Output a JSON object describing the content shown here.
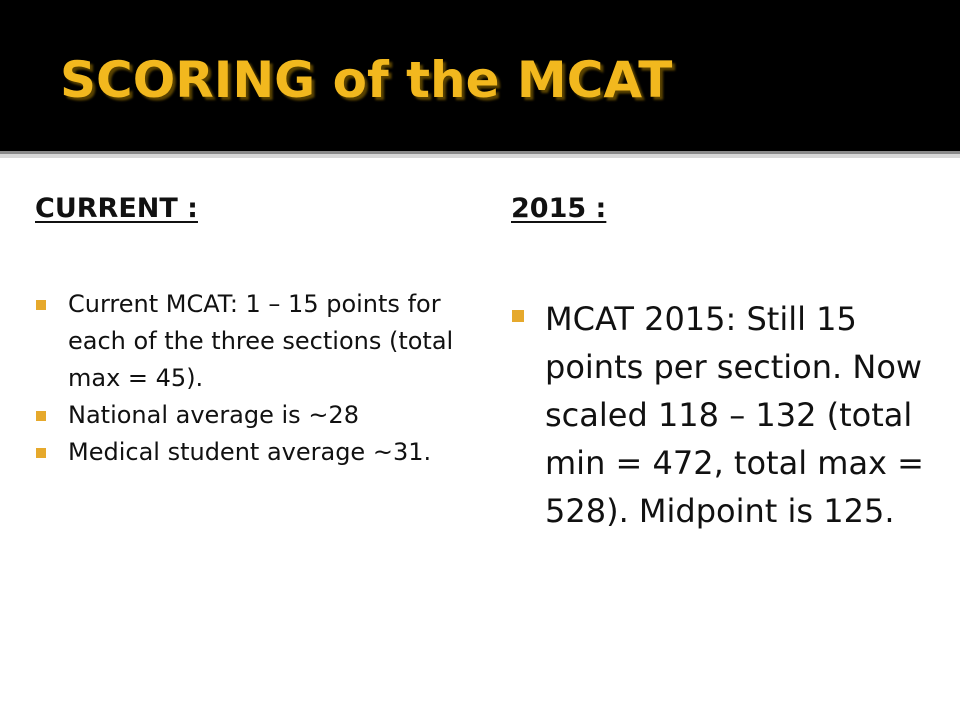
{
  "slide": {
    "title": "SCORING of the MCAT",
    "left": {
      "heading": "CURRENT :",
      "bullets": [
        "Current MCAT:  1 – 15 points for each of the three sections (total max = 45).",
        "National average is ~28",
        "Medical student average ~31."
      ]
    },
    "right": {
      "heading": "2015 :",
      "bullets": [
        "MCAT 2015:  Still 15 points per section.  Now scaled 118 – 132 (total min = 472, total max = 528).  Midpoint is 125."
      ]
    }
  },
  "colors": {
    "title_bar": "#000000",
    "title_text": "#f2b81e",
    "bullet": "#e6a92c",
    "body_text": "#111111"
  }
}
